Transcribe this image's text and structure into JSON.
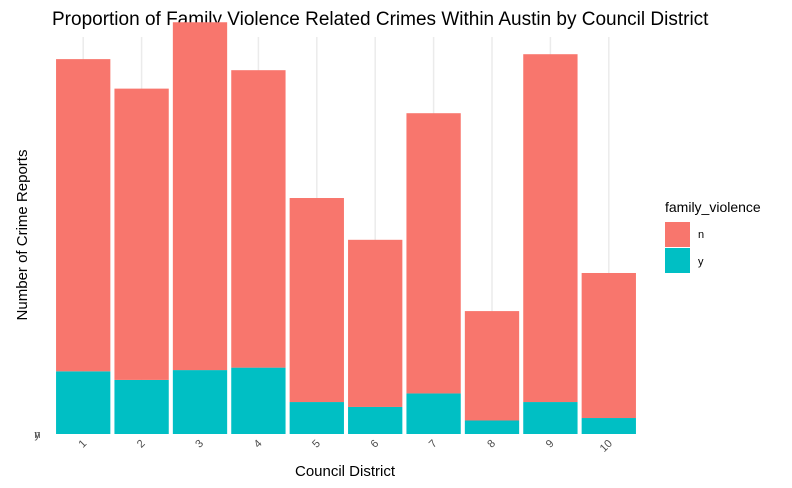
{
  "chart_data": {
    "type": "bar",
    "stacked": true,
    "title": "Proportion of Family Violence Related Crimes Within Austin by Council District",
    "xlabel": "Council District",
    "ylabel": "Number of Crime Reports",
    "categories": [
      "1",
      "2",
      "3",
      "4",
      "5",
      "6",
      "7",
      "8",
      "9",
      "10"
    ],
    "series": [
      {
        "name": "n",
        "color": "#F8766D",
        "values": [
          254,
          237,
          283,
          242,
          166,
          136,
          228,
          89,
          283,
          118
        ]
      },
      {
        "name": "y",
        "color": "#00BFC4",
        "values": [
          51,
          44,
          52,
          54,
          26,
          22,
          33,
          11,
          26,
          13
        ]
      }
    ],
    "y_tick_labels": [
      "y",
      "n"
    ],
    "ylim": [
      0,
      323
    ],
    "legend": {
      "title": "family_violence",
      "position": "right"
    },
    "grid": {
      "major_x": true,
      "major_y": false
    }
  }
}
